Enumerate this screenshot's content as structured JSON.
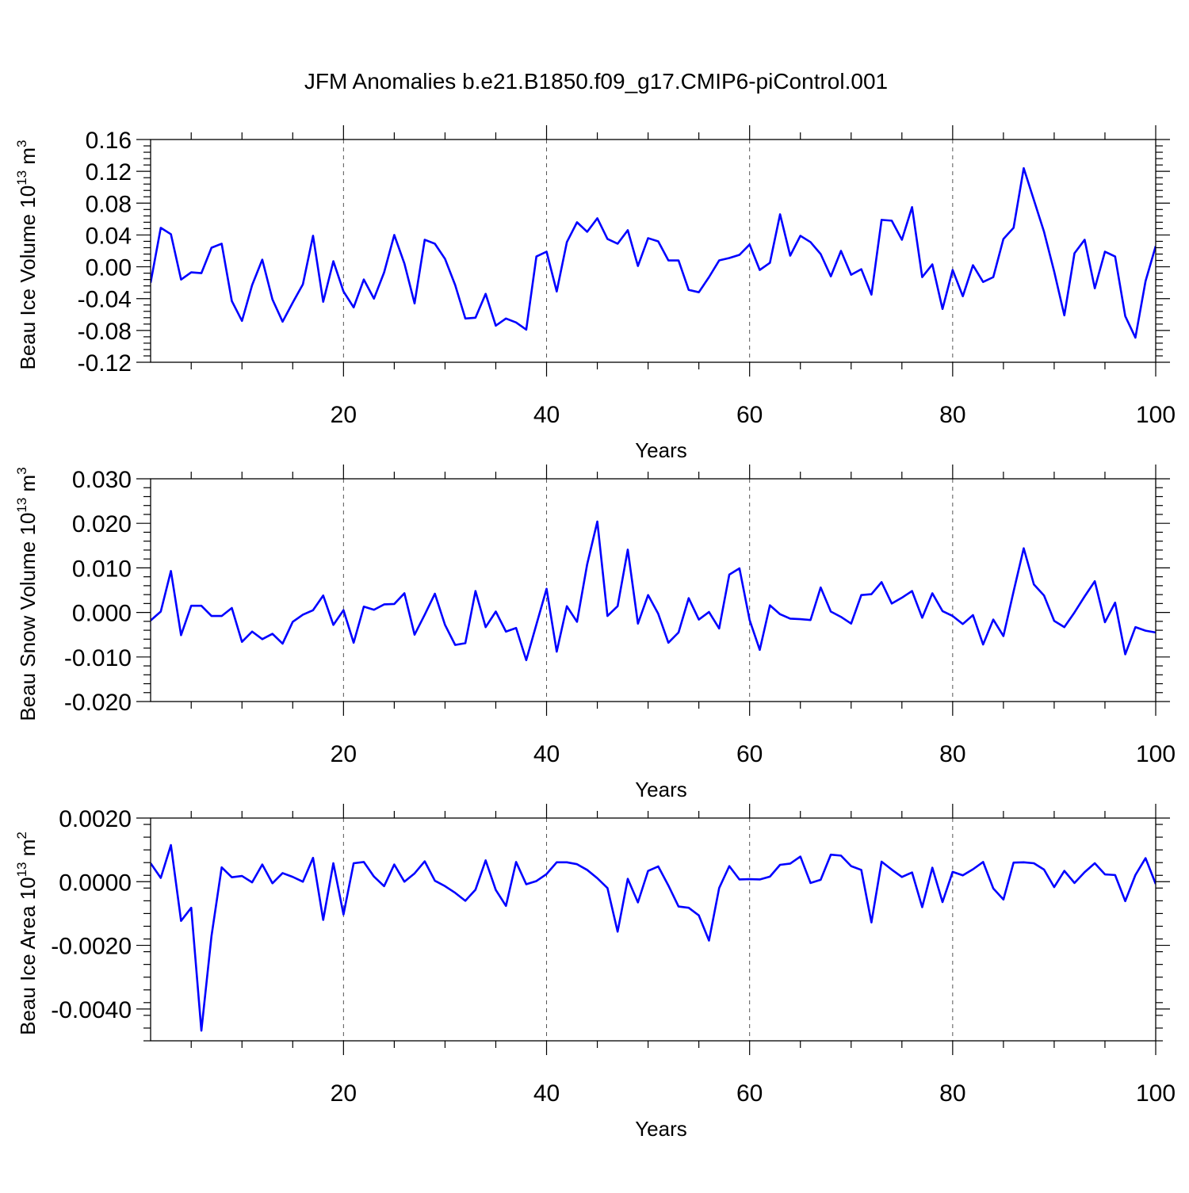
{
  "title": "JFM Anomalies b.e21.B1850.f09_g17.CMIP6-piControl.001",
  "line_color": "#0000ff",
  "chart_data": [
    {
      "type": "line",
      "title": "JFM Anomalies b.e21.B1850.f09_g17.CMIP6-piControl.001",
      "xlabel": "Years",
      "ylabel_main": "Beau Ice Volume 10",
      "ylabel_sup": "13",
      "ylabel_unit": " m",
      "ylabel_unit_sup": "3",
      "xlim": [
        1,
        100
      ],
      "ylim": [
        -0.12,
        0.16
      ],
      "xticks": [
        20,
        40,
        60,
        80,
        100
      ],
      "xtick_labels": [
        "20",
        "40",
        "60",
        "80",
        "100"
      ],
      "yticks": [
        -0.12,
        -0.08,
        -0.04,
        0.0,
        0.04,
        0.08,
        0.12,
        0.16
      ],
      "ytick_labels": [
        "-0.12",
        "-0.08",
        "-0.04",
        "0.00",
        "0.04",
        "0.08",
        "0.12",
        "0.16"
      ],
      "grid_x": [
        20,
        40,
        60,
        80
      ],
      "series": [
        {
          "name": "Beau Ice Volume",
          "x_start": 1,
          "values": [
            -0.02,
            0.049,
            0.041,
            -0.016,
            -0.007,
            -0.008,
            0.024,
            0.029,
            -0.043,
            -0.068,
            -0.023,
            0.009,
            -0.041,
            -0.069,
            -0.045,
            -0.022,
            0.039,
            -0.044,
            0.007,
            -0.031,
            -0.051,
            -0.016,
            -0.04,
            -0.007,
            0.04,
            0.004,
            -0.046,
            0.034,
            0.029,
            0.01,
            -0.023,
            -0.065,
            -0.064,
            -0.034,
            -0.074,
            -0.065,
            -0.07,
            -0.079,
            0.013,
            0.019,
            -0.031,
            0.031,
            0.056,
            0.044,
            0.061,
            0.035,
            0.029,
            0.046,
            0.001,
            0.036,
            0.032,
            0.008,
            0.008,
            -0.029,
            -0.032,
            -0.013,
            0.008,
            0.011,
            0.015,
            0.028,
            -0.004,
            0.005,
            0.066,
            0.014,
            0.039,
            0.031,
            0.016,
            -0.012,
            0.02,
            -0.01,
            -0.003,
            -0.035,
            0.059,
            0.058,
            0.034,
            0.075,
            -0.013,
            0.003,
            -0.053,
            -0.004,
            -0.037,
            0.002,
            -0.019,
            -0.013,
            0.035,
            0.049,
            0.124,
            0.084,
            0.044,
            -0.006,
            -0.061,
            0.017,
            0.034,
            -0.027,
            0.019,
            0.013,
            -0.062,
            -0.089,
            -0.018,
            0.026
          ]
        }
      ]
    },
    {
      "type": "line",
      "xlabel": "Years",
      "ylabel_main": "Beau Snow Volume 10",
      "ylabel_sup": "13",
      "ylabel_unit": " m",
      "ylabel_unit_sup": "3",
      "xlim": [
        1,
        100
      ],
      "ylim": [
        -0.02,
        0.03
      ],
      "xticks": [
        20,
        40,
        60,
        80,
        100
      ],
      "xtick_labels": [
        "20",
        "40",
        "60",
        "80",
        "100"
      ],
      "yticks": [
        -0.02,
        -0.01,
        0.0,
        0.01,
        0.02,
        0.03
      ],
      "ytick_labels": [
        "-0.020",
        "-0.010",
        "0.000",
        "0.010",
        "0.020",
        "0.030"
      ],
      "grid_x": [
        20,
        40,
        60,
        80
      ],
      "series": [
        {
          "name": "Beau Snow Volume",
          "x_start": 1,
          "values": [
            -0.0018,
            0.0002,
            0.0093,
            -0.0051,
            0.0015,
            0.0015,
            -0.0008,
            -0.0008,
            0.001,
            -0.0066,
            -0.0043,
            -0.006,
            -0.0048,
            -0.007,
            -0.0021,
            -0.0005,
            0.0005,
            0.0038,
            -0.0028,
            0.0005,
            -0.0068,
            0.0013,
            0.0006,
            0.0018,
            0.0019,
            0.0043,
            -0.005,
            -0.0005,
            0.0042,
            -0.0028,
            -0.0073,
            -0.0069,
            0.0048,
            -0.0033,
            0.0002,
            -0.0043,
            -0.0035,
            -0.0107,
            -0.0027,
            0.0053,
            -0.0088,
            0.0014,
            -0.0021,
            0.0108,
            0.0204,
            -0.0008,
            0.0014,
            0.0141,
            -0.0025,
            0.0039,
            -0.0003,
            -0.0068,
            -0.0045,
            0.0032,
            -0.0016,
            0.0001,
            -0.0036,
            0.0085,
            0.0099,
            -0.0017,
            -0.0084,
            0.0016,
            -0.0004,
            -0.0014,
            -0.0015,
            -0.0017,
            0.0056,
            0.0002,
            -0.001,
            -0.0025,
            0.0039,
            0.0041,
            0.0068,
            0.002,
            0.0033,
            0.0048,
            -0.0012,
            0.0043,
            0.0003,
            -0.0008,
            -0.0026,
            -0.0006,
            -0.0072,
            -0.0016,
            -0.0053,
            0.0047,
            0.0144,
            0.0063,
            0.0038,
            -0.0019,
            -0.0033,
            0.0,
            0.0036,
            0.007,
            -0.0022,
            0.0022,
            -0.0094,
            -0.0033,
            -0.0041,
            -0.0045
          ]
        }
      ]
    },
    {
      "type": "line",
      "xlabel": "Years",
      "ylabel_main": "Beau Ice Area 10",
      "ylabel_sup": "13",
      "ylabel_unit": " m",
      "ylabel_unit_sup": "2",
      "xlim": [
        1,
        100
      ],
      "ylim": [
        -0.005,
        0.002
      ],
      "xticks": [
        20,
        40,
        60,
        80,
        100
      ],
      "xtick_labels": [
        "20",
        "40",
        "60",
        "80",
        "100"
      ],
      "yticks": [
        -0.004,
        -0.002,
        0.0,
        0.002
      ],
      "ytick_labels": [
        "-0.0040",
        "-0.0020",
        "0.0000",
        "0.0020"
      ],
      "grid_x": [
        20,
        40,
        60,
        80
      ],
      "series": [
        {
          "name": "Beau Ice Area",
          "x_start": 1,
          "values": [
            0.00058,
            0.00012,
            0.00115,
            -0.00123,
            -0.00082,
            -0.00468,
            -0.0017,
            0.00045,
            0.00014,
            0.00018,
            -2e-05,
            0.00054,
            -5e-05,
            0.00027,
            0.00015,
            0.0,
            0.00075,
            -0.0012,
            0.00058,
            -0.00103,
            0.00058,
            0.00062,
            0.00016,
            -0.00014,
            0.00054,
            0.0,
            0.00026,
            0.00064,
            3e-05,
            -0.00014,
            -0.00035,
            -0.0006,
            -0.00025,
            0.00067,
            -0.00026,
            -0.00076,
            0.00062,
            -8e-05,
            2e-05,
            0.00024,
            0.00061,
            0.00061,
            0.00055,
            0.00037,
            0.00011,
            -0.0002,
            -0.00157,
            9e-05,
            -0.00065,
            0.00034,
            0.00048,
            -0.00012,
            -0.00078,
            -0.00082,
            -0.00106,
            -0.00185,
            -0.0002,
            0.00049,
            7e-05,
            8e-05,
            7e-05,
            0.00016,
            0.00053,
            0.00057,
            0.00079,
            -4e-05,
            6e-05,
            0.00085,
            0.00082,
            0.00049,
            0.00037,
            -0.00128,
            0.00063,
            0.00038,
            0.00015,
            0.00029,
            -0.0008,
            0.00044,
            -0.00064,
            0.00031,
            0.0002,
            0.00039,
            0.00062,
            -0.00021,
            -0.00056,
            0.0006,
            0.00061,
            0.00058,
            0.00038,
            -0.00017,
            0.00034,
            -4e-05,
            0.0003,
            0.00058,
            0.00023,
            0.00021,
            -0.00061,
            0.00021,
            0.00074,
            -7e-05
          ]
        }
      ]
    }
  ]
}
